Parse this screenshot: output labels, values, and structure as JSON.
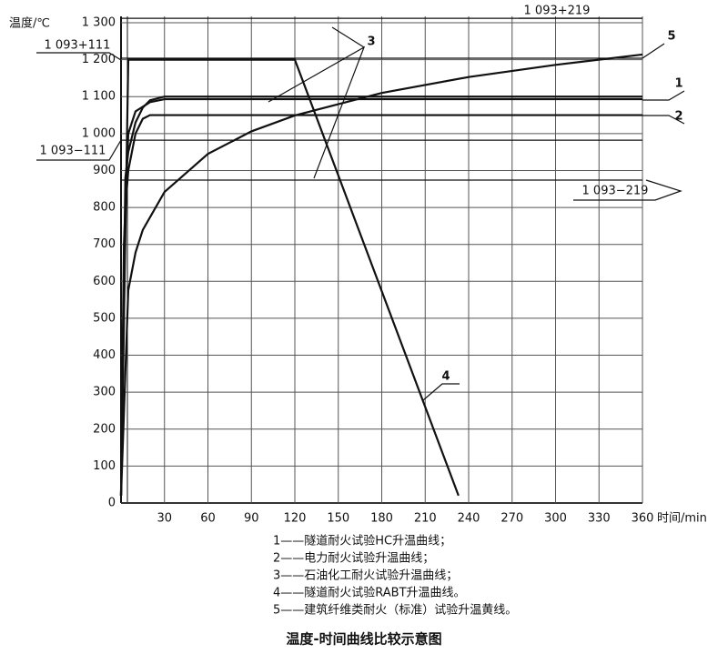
{
  "chart_data": {
    "type": "line",
    "title": "温度-时间曲线比较示意图",
    "y_label": "温度/℃",
    "x_label": "时间/min",
    "xlim": [
      0,
      360
    ],
    "ylim": [
      0,
      1300
    ],
    "xticks": [
      30,
      60,
      90,
      120,
      150,
      180,
      210,
      240,
      270,
      300,
      330,
      360
    ],
    "yticks": [
      0,
      100,
      200,
      300,
      400,
      500,
      600,
      700,
      800,
      900,
      {
        "value": 1000,
        "label": "1 000"
      },
      {
        "value": 1100,
        "label": "1 100"
      },
      {
        "value": 1200,
        "label": "1 200"
      },
      {
        "value": 1300,
        "label": "1 300"
      }
    ],
    "grid": true,
    "series": [
      {
        "name": "1",
        "color": "#111111",
        "x": [
          0,
          3,
          5,
          10,
          15,
          20,
          30,
          360
        ],
        "values": [
          20,
          880,
          950,
          1030,
          1070,
          1090,
          1100,
          1100
        ]
      },
      {
        "name": "2",
        "color": "#111111",
        "x": [
          0,
          3,
          5,
          10,
          15,
          20,
          360
        ],
        "values": [
          20,
          800,
          900,
          1000,
          1040,
          1050,
          1050
        ]
      },
      {
        "name": "3",
        "color": "#111111",
        "x": [
          0,
          2,
          5,
          10,
          20,
          30,
          360
        ],
        "values": [
          20,
          700,
          1000,
          1060,
          1085,
          1093,
          1093
        ]
      },
      {
        "name": "4",
        "color": "#111111",
        "x": [
          0,
          5,
          120,
          233
        ],
        "values": [
          20,
          1200,
          1200,
          20
        ]
      },
      {
        "name": "5",
        "color": "#111111",
        "x": [
          0,
          5,
          10,
          15,
          30,
          60,
          90,
          120,
          180,
          240,
          300,
          360
        ],
        "values": [
          20,
          576,
          678,
          739,
          842,
          945,
          1006,
          1049,
          1110,
          1153,
          1186,
          1214
        ]
      }
    ],
    "reference_lines": [
      {
        "label": "1 093+219",
        "value": 1312
      },
      {
        "label": "1 093+111",
        "value": 1204
      },
      {
        "label": "1 093−111",
        "value": 982
      },
      {
        "label": "1 093−219",
        "value": 874
      }
    ],
    "notes": [
      "1——隧道耐火试验HC升温曲线；",
      "2——电力耐火试验升温曲线；",
      "3——石油化工耐火试验升温曲线；",
      "4——隧道耐火试验RABT升温曲线。",
      "5——建筑纤维类耐火（标准）试验升温黄线。"
    ]
  }
}
